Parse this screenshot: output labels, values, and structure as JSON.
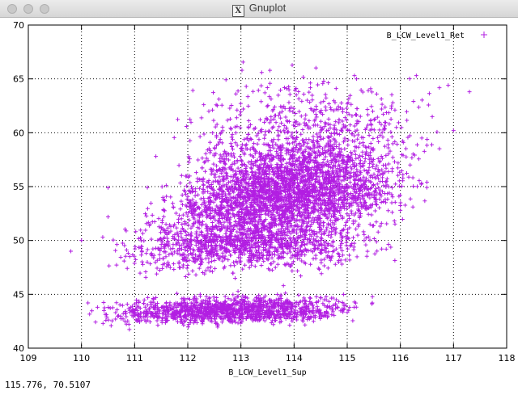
{
  "window": {
    "title": "Gnuplot",
    "x_icon_glyph": "X"
  },
  "status": {
    "coordinates": "115.776,  70.5107"
  },
  "colors": {
    "points": "#b21ee2",
    "grid": "#000000",
    "axis": "#000000"
  },
  "chart_data": {
    "type": "scatter",
    "xlabel": "B_LCW_Level1_Sup",
    "ylabel": "",
    "xlim": [
      109,
      118
    ],
    "ylim": [
      40,
      70
    ],
    "xticks": [
      "109",
      "110",
      "111",
      "112",
      "113",
      "114",
      "115",
      "116",
      "117",
      "118"
    ],
    "yticks": [
      "40",
      "45",
      "50",
      "55",
      "60",
      "65",
      "70"
    ],
    "grid": true,
    "legend_position": "top-right",
    "marker": "+",
    "series": [
      {
        "name": "B_LCW_Level1_Ret",
        "clusters": [
          {
            "x_min": 110.4,
            "x_max": 115.2,
            "y_center": 43.5,
            "y_spread": 0.6,
            "density": "very high"
          },
          {
            "x_min": 110.8,
            "x_max": 115.6,
            "y_center": 49.8,
            "y_spread": 1.2,
            "density": "very high"
          },
          {
            "x_min": 111.5,
            "x_max": 116.0,
            "y_center": 53.5,
            "y_spread": 1.2,
            "density": "very high"
          },
          {
            "x_min": 112.0,
            "x_max": 116.2,
            "y_center": 56.0,
            "y_spread": 1.5,
            "density": "very high"
          },
          {
            "x_min": 112.0,
            "x_max": 116.5,
            "y_center": 60.0,
            "y_spread": 2.5,
            "density": "medium"
          }
        ],
        "outliers": [
          {
            "x": 109.8,
            "y": 49
          },
          {
            "x": 110.0,
            "y": 50.0
          },
          {
            "x": 110.4,
            "y": 50.3
          },
          {
            "x": 110.5,
            "y": 52.2
          },
          {
            "x": 110.5,
            "y": 54.9
          },
          {
            "x": 111.4,
            "y": 57.8
          },
          {
            "x": 112.3,
            "y": 62.6
          },
          {
            "x": 113.1,
            "y": 64.3
          },
          {
            "x": 113.8,
            "y": 45.8
          },
          {
            "x": 114.9,
            "y": 47.8
          },
          {
            "x": 116.0,
            "y": 52.8
          },
          {
            "x": 116.3,
            "y": 65.3
          },
          {
            "x": 116.5,
            "y": 55.4
          },
          {
            "x": 116.6,
            "y": 61.5
          },
          {
            "x": 116.9,
            "y": 64.4
          },
          {
            "x": 117.0,
            "y": 60.2
          },
          {
            "x": 117.3,
            "y": 63.8
          }
        ]
      }
    ]
  }
}
